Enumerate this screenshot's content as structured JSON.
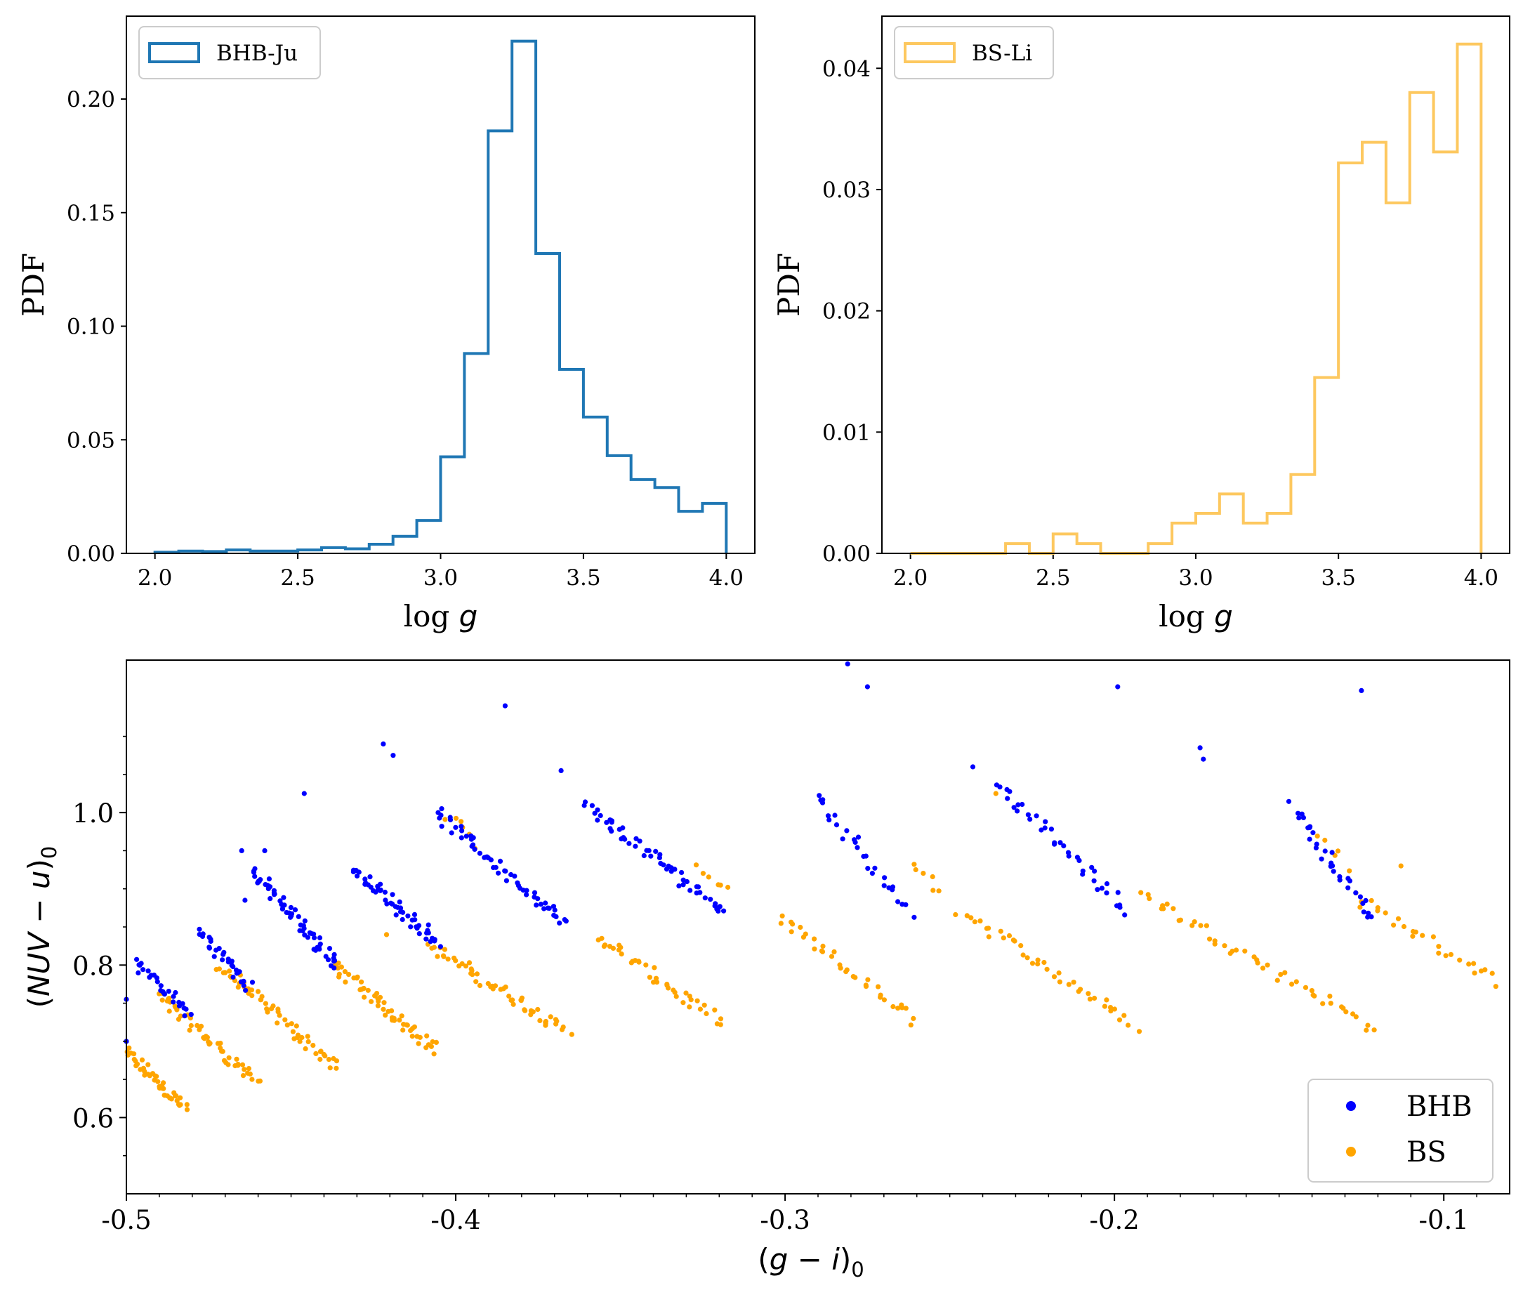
{
  "colors": {
    "bhb_ju": "#1f77b4",
    "bs_li": "#fdc85f",
    "bhb_points": "#0000ff",
    "bs_points": "#ffa500"
  },
  "chart_data": [
    {
      "type": "histogram",
      "id": "top-left",
      "legend": "BHB-Ju",
      "legend_position": "top-left",
      "xlabel": "log g",
      "xlabel_text": "log ",
      "xlabel_var": "g",
      "ylabel": "PDF",
      "xlim": [
        1.9,
        4.1
      ],
      "ylim": [
        0,
        0.2365
      ],
      "xticks": [
        2.0,
        2.5,
        3.0,
        3.5,
        4.0
      ],
      "xtick_labels": [
        "2.0",
        "2.5",
        "3.0",
        "3.5",
        "4.0"
      ],
      "yticks": [
        0.0,
        0.05,
        0.1,
        0.15,
        0.2
      ],
      "ytick_labels": [
        "0.00",
        "0.05",
        "0.10",
        "0.15",
        "0.20"
      ],
      "bin_start": 2.0,
      "bin_width": 0.08333,
      "values": [
        0.0005,
        0.001,
        0.0008,
        0.0015,
        0.001,
        0.001,
        0.0015,
        0.0025,
        0.002,
        0.004,
        0.0075,
        0.0145,
        0.0425,
        0.088,
        0.186,
        0.2255,
        0.132,
        0.081,
        0.06,
        0.043,
        0.0325,
        0.029,
        0.0185,
        0.022
      ]
    },
    {
      "type": "histogram",
      "id": "top-right",
      "legend": "BS-Li",
      "legend_position": "top-left",
      "xlabel": "log g",
      "xlabel_text": "log ",
      "xlabel_var": "g",
      "ylabel": "PDF",
      "xlim": [
        1.9,
        4.1
      ],
      "ylim": [
        0,
        0.0443
      ],
      "xticks": [
        2.0,
        2.5,
        3.0,
        3.5,
        4.0
      ],
      "xtick_labels": [
        "2.0",
        "2.5",
        "3.0",
        "3.5",
        "4.0"
      ],
      "yticks": [
        0.0,
        0.01,
        0.02,
        0.03,
        0.04
      ],
      "ytick_labels": [
        "0.00",
        "0.01",
        "0.02",
        "0.03",
        "0.04"
      ],
      "bin_start": 2.0,
      "bin_width": 0.08333,
      "values": [
        0,
        0,
        0,
        0,
        0.0008,
        0,
        0.0016,
        0.0008,
        0,
        0,
        0.0008,
        0.0025,
        0.0033,
        0.0049,
        0.0025,
        0.0033,
        0.0065,
        0.0145,
        0.0322,
        0.0339,
        0.0289,
        0.038,
        0.0331,
        0.042
      ]
    },
    {
      "type": "scatter",
      "id": "bottom",
      "xlabel": "(g − i)0",
      "xlabel_parts": [
        "(",
        "g",
        " − ",
        "i",
        ")",
        "0"
      ],
      "ylabel": "(NUV − u)0",
      "ylabel_parts": [
        "(",
        "NUV",
        " − ",
        "u",
        ")",
        "0"
      ],
      "xlim": [
        -0.5,
        -0.08
      ],
      "ylim": [
        0.5,
        1.2
      ],
      "xticks": [
        -0.5,
        -0.4,
        -0.3,
        -0.2,
        -0.1
      ],
      "xtick_labels": [
        "-0.5",
        "-0.4",
        "-0.3",
        "-0.2",
        "-0.1"
      ],
      "yticks": [
        0.6,
        0.8,
        1.0
      ],
      "ytick_labels": [
        "0.6",
        "0.8",
        "1.0"
      ],
      "legend_position": "lower-right",
      "series": [
        {
          "name": "BHB",
          "color": "#0000ff",
          "segments": [
            {
              "x0": -0.497,
              "y0": 0.805,
              "x1": -0.481,
              "y1": 0.735,
              "n": 28
            },
            {
              "x0": -0.478,
              "y0": 0.845,
              "x1": -0.462,
              "y1": 0.77,
              "n": 30
            },
            {
              "x0": -0.462,
              "y0": 0.925,
              "x1": -0.436,
              "y1": 0.8,
              "n": 60
            },
            {
              "x0": -0.431,
              "y0": 0.925,
              "x1": -0.405,
              "y1": 0.83,
              "n": 52
            },
            {
              "x0": -0.406,
              "y0": 1.0,
              "x1": -0.367,
              "y1": 0.855,
              "n": 56
            },
            {
              "x0": -0.361,
              "y0": 1.01,
              "x1": -0.318,
              "y1": 0.87,
              "n": 55
            },
            {
              "x0": -0.291,
              "y0": 1.025,
              "x1": -0.262,
              "y1": 0.87,
              "n": 28
            },
            {
              "x0": -0.236,
              "y0": 1.04,
              "x1": -0.196,
              "y1": 0.87,
              "n": 38
            },
            {
              "x0": -0.146,
              "y0": 1.01,
              "x1": -0.122,
              "y1": 0.86,
              "n": 32
            }
          ],
          "points": [
            {
              "x": -0.5,
              "y": 0.755
            },
            {
              "x": -0.5,
              "y": 0.7
            },
            {
              "x": -0.465,
              "y": 0.95
            },
            {
              "x": -0.458,
              "y": 0.95
            },
            {
              "x": -0.446,
              "y": 1.025
            },
            {
              "x": -0.422,
              "y": 1.09
            },
            {
              "x": -0.419,
              "y": 1.075
            },
            {
              "x": -0.385,
              "y": 1.14
            },
            {
              "x": -0.368,
              "y": 1.055
            },
            {
              "x": -0.281,
              "y": 1.195
            },
            {
              "x": -0.275,
              "y": 1.165
            },
            {
              "x": -0.243,
              "y": 1.06
            },
            {
              "x": -0.199,
              "y": 1.165
            },
            {
              "x": -0.174,
              "y": 1.085
            },
            {
              "x": -0.173,
              "y": 1.07
            },
            {
              "x": -0.125,
              "y": 1.16
            },
            {
              "x": -0.464,
              "y": 0.885
            }
          ]
        },
        {
          "name": "BS",
          "color": "#ffa500",
          "segments": [
            {
              "x0": -0.5,
              "y0": 0.685,
              "x1": -0.482,
              "y1": 0.612,
              "n": 45
            },
            {
              "x0": -0.49,
              "y0": 0.76,
              "x1": -0.46,
              "y1": 0.645,
              "n": 50
            },
            {
              "x0": -0.472,
              "y0": 0.8,
              "x1": -0.436,
              "y1": 0.665,
              "n": 55
            },
            {
              "x0": -0.437,
              "y0": 0.8,
              "x1": -0.406,
              "y1": 0.69,
              "n": 55
            },
            {
              "x0": -0.408,
              "y0": 0.825,
              "x1": -0.366,
              "y1": 0.712,
              "n": 55
            },
            {
              "x0": -0.357,
              "y0": 0.838,
              "x1": -0.32,
              "y1": 0.725,
              "n": 40
            },
            {
              "x0": -0.302,
              "y0": 0.862,
              "x1": -0.261,
              "y1": 0.728,
              "n": 35
            },
            {
              "x0": -0.247,
              "y0": 0.872,
              "x1": -0.193,
              "y1": 0.72,
              "n": 40
            },
            {
              "x0": -0.19,
              "y0": 0.888,
              "x1": -0.121,
              "y1": 0.718,
              "n": 45
            },
            {
              "x0": -0.128,
              "y0": 0.89,
              "x1": -0.081,
              "y1": 0.775,
              "n": 28
            },
            {
              "x0": -0.403,
              "y0": 0.995,
              "x1": -0.395,
              "y1": 0.96,
              "n": 6
            },
            {
              "x0": -0.327,
              "y0": 0.935,
              "x1": -0.318,
              "y1": 0.895,
              "n": 6
            },
            {
              "x0": -0.262,
              "y0": 0.935,
              "x1": -0.253,
              "y1": 0.895,
              "n": 6
            },
            {
              "x0": -0.137,
              "y0": 0.965,
              "x1": -0.13,
              "y1": 0.93,
              "n": 5
            }
          ],
          "points": [
            {
              "x": -0.236,
              "y": 1.025
            },
            {
              "x": -0.184,
              "y": 0.88
            },
            {
              "x": -0.192,
              "y": 0.895
            },
            {
              "x": -0.113,
              "y": 0.93
            },
            {
              "x": -0.421,
              "y": 0.84
            },
            {
              "x": -0.47,
              "y": 0.79
            }
          ]
        }
      ]
    }
  ]
}
